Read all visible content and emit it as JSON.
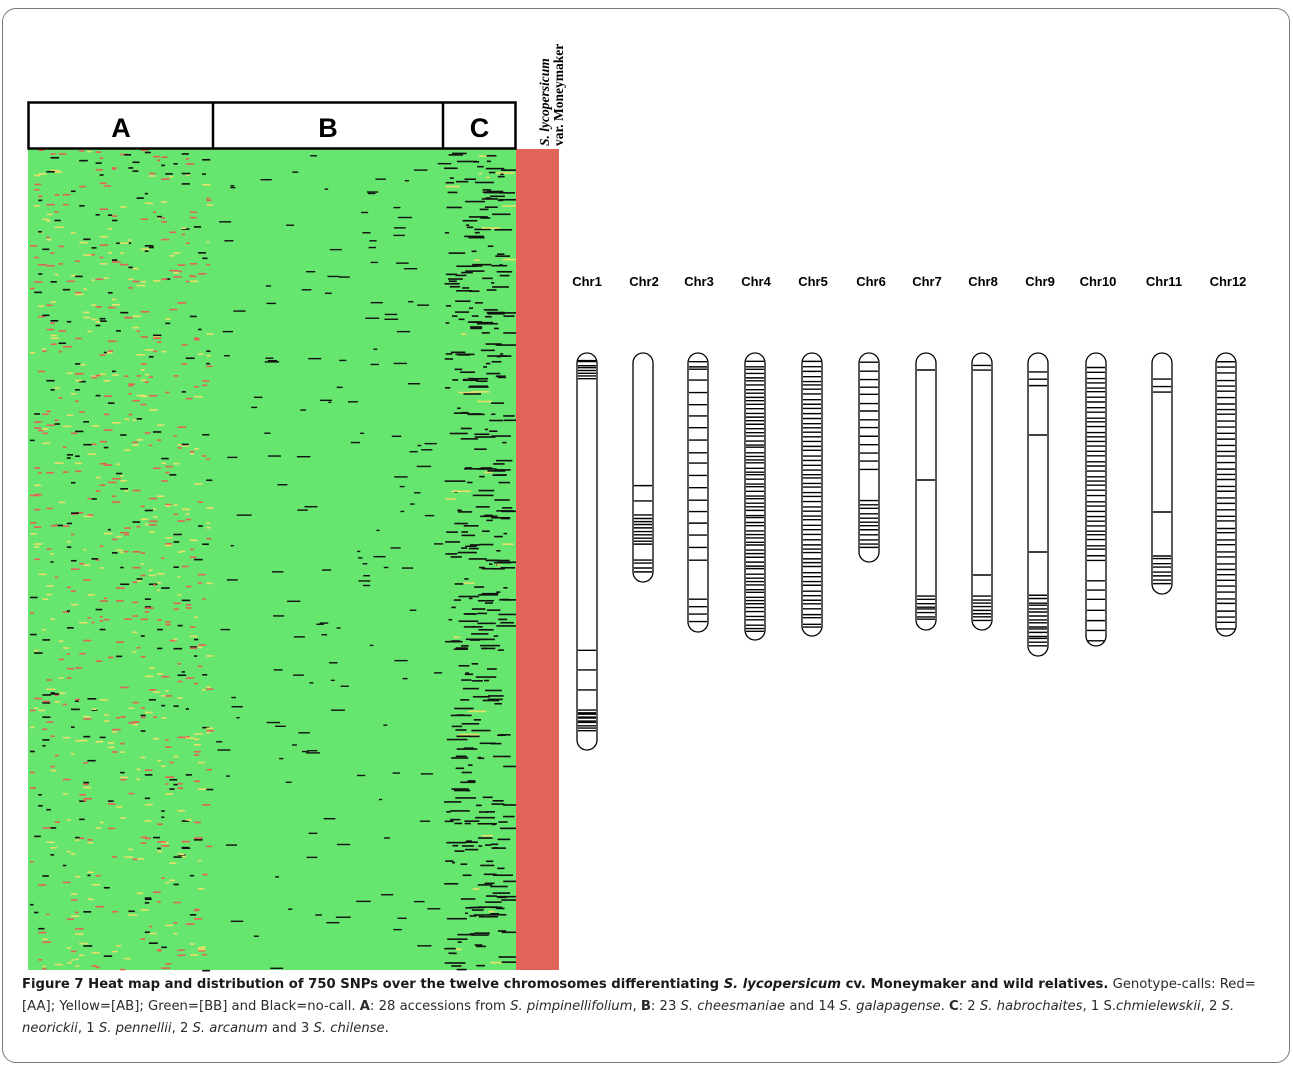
{
  "heatmap": {
    "groups": [
      {
        "id": "A",
        "label": "A"
      },
      {
        "id": "B",
        "label": "B"
      },
      {
        "id": "C",
        "label": "C"
      }
    ],
    "reference_label_line1": "S. lycopersicum",
    "reference_label_line2": "var. Moneymaker",
    "snp_count": 750,
    "colors": {
      "AA": "#e06457",
      "AB": "#e8e06a",
      "BB": "#66e66e",
      "no_call": "#111111"
    }
  },
  "chromosomes": {
    "labels": [
      "Chr1",
      "Chr2",
      "Chr3",
      "Chr4",
      "Chr5",
      "Chr6",
      "Chr7",
      "Chr8",
      "Chr9",
      "Chr10",
      "Chr11",
      "Chr12"
    ]
  },
  "caption": {
    "fig_label": "Figure 7",
    "title_part1": "Heat map and distribution of 750 SNPs over the twelve chromosomes differentiating",
    "title_species": "S. lycopersicum",
    "title_part2": "cv. Moneymaker and wild relatives.",
    "genotype_text": "Genotype-calls: Red=[AA]; Yellow=[AB]; Green=[BB] and Black=no-call.",
    "a_label": "A",
    "a_text": ": 28 accessions from",
    "a_species": "S. pimpinellifolium",
    "b_label": "B",
    "b_text1": ": 23",
    "b_species1": "S. cheesmaniae",
    "b_text2": "and 14",
    "b_species2": "S. galapagense",
    "c_label": "C",
    "c_text1": ": 2",
    "c_species1": "S. habrochaites",
    "c_text2": ", 1 S.",
    "c_species2": "chmielewskii",
    "c_text3": ", 2",
    "c_species3": "S. neorickii",
    "c_text4": ", 1",
    "c_species4": "S. pennellii",
    "c_text5": ", 2",
    "c_species5": "S. arcanum",
    "c_text6": "and 3",
    "c_species6": "S. chilense"
  }
}
